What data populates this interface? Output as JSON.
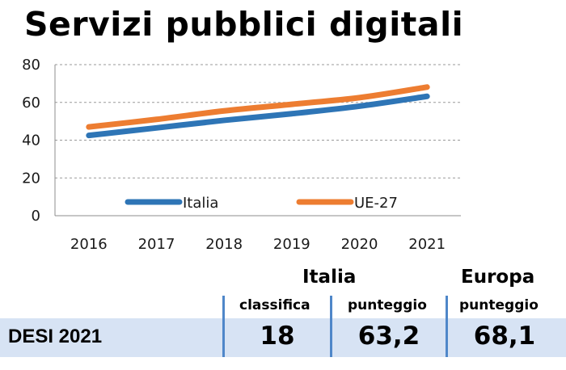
{
  "title": "Servizi pubblici digitali",
  "chart_data": {
    "type": "line",
    "title": "Servizi pubblici digitali",
    "x": [
      "2016",
      "2017",
      "2018",
      "2019",
      "2020",
      "2021"
    ],
    "ylim": [
      0,
      80
    ],
    "yticks": [
      0,
      20,
      40,
      60,
      80
    ],
    "grid": true,
    "legend_position": "bottom-inside",
    "series": [
      {
        "name": "Italia",
        "color": "#2e75b6",
        "values": [
          42.5,
          46.5,
          50.5,
          54,
          58,
          63.2
        ]
      },
      {
        "name": "UE-27",
        "color": "#ed7d31",
        "values": [
          47,
          51,
          55.5,
          59,
          62.5,
          68.1
        ]
      }
    ]
  },
  "table": {
    "group_italia": "Italia",
    "group_europa": "Europa",
    "col_classifica": "classifica",
    "col_punteggio_italia": "punteggio",
    "col_punteggio_europa": "punteggio",
    "row_label": "DESI 2021",
    "classifica_value": "18",
    "punteggio_italia_value": "63,2",
    "punteggio_europa_value": "68,1"
  }
}
